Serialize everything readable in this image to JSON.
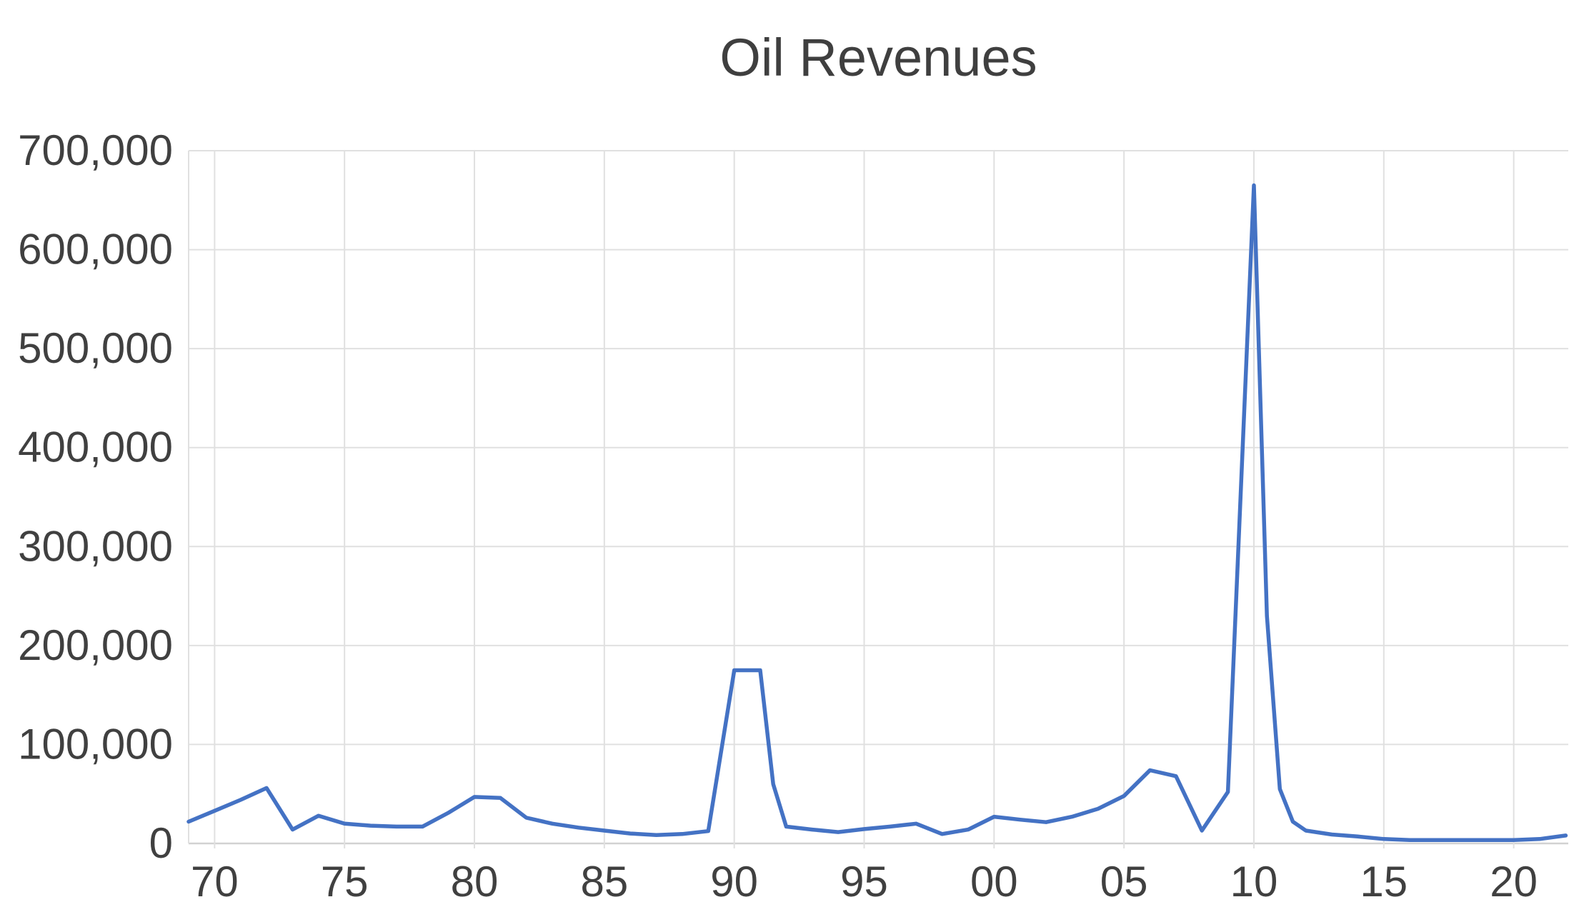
{
  "chart_data": {
    "type": "line",
    "title": "Oil Revenues",
    "xlabel": "",
    "ylabel": "",
    "legend_position": "none",
    "grid": true,
    "xlim": [
      1969,
      2022.1
    ],
    "ylim": [
      0,
      700000
    ],
    "line_color": "#4472C4",
    "grid_color": "#e0e0e0",
    "axis_line_color": "#d2d2d2",
    "text_color": "#404040",
    "y_ticks": [
      {
        "value": 0,
        "label": "0"
      },
      {
        "value": 100000,
        "label": "100,000"
      },
      {
        "value": 200000,
        "label": "200,000"
      },
      {
        "value": 300000,
        "label": "300,000"
      },
      {
        "value": 400000,
        "label": "400,000"
      },
      {
        "value": 500000,
        "label": "500,000"
      },
      {
        "value": 600000,
        "label": "600,000"
      },
      {
        "value": 700000,
        "label": "700,000"
      }
    ],
    "x_ticks": [
      {
        "year": 1970,
        "label": "70"
      },
      {
        "year": 1975,
        "label": "75"
      },
      {
        "year": 1980,
        "label": "80"
      },
      {
        "year": 1985,
        "label": "85"
      },
      {
        "year": 1990,
        "label": "90"
      },
      {
        "year": 1995,
        "label": "95"
      },
      {
        "year": 2000,
        "label": "00"
      },
      {
        "year": 2005,
        "label": "05"
      },
      {
        "year": 2010,
        "label": "10"
      },
      {
        "year": 2015,
        "label": "15"
      },
      {
        "year": 2020,
        "label": "20"
      }
    ],
    "series": [
      {
        "name": "Oil Revenues",
        "points": [
          [
            1969,
            22000
          ],
          [
            1970,
            33000
          ],
          [
            1971,
            44000
          ],
          [
            1972,
            56000
          ],
          [
            1973,
            14000
          ],
          [
            1974,
            28000
          ],
          [
            1975,
            20000
          ],
          [
            1976,
            18000
          ],
          [
            1977,
            17000
          ],
          [
            1978,
            17000
          ],
          [
            1979,
            31000
          ],
          [
            1980,
            47000
          ],
          [
            1981,
            46000
          ],
          [
            1982,
            26000
          ],
          [
            1983,
            20000
          ],
          [
            1984,
            16000
          ],
          [
            1985,
            13000
          ],
          [
            1986,
            10000
          ],
          [
            1987,
            8500
          ],
          [
            1988,
            9500
          ],
          [
            1989,
            12500
          ],
          [
            1990,
            175000
          ],
          [
            1991,
            175000
          ],
          [
            1991.5,
            60000
          ],
          [
            1992,
            17000
          ],
          [
            1993,
            14000
          ],
          [
            1994,
            11500
          ],
          [
            1995,
            14500
          ],
          [
            1996,
            17000
          ],
          [
            1997,
            20000
          ],
          [
            1998,
            9500
          ],
          [
            1999,
            14000
          ],
          [
            2000,
            27000
          ],
          [
            2001,
            24000
          ],
          [
            2002,
            21500
          ],
          [
            2003,
            27000
          ],
          [
            2004,
            35000
          ],
          [
            2005,
            48000
          ],
          [
            2006,
            74000
          ],
          [
            2007,
            68000
          ],
          [
            2008,
            13000
          ],
          [
            2009,
            52000
          ],
          [
            2010,
            665000
          ],
          [
            2010.5,
            230000
          ],
          [
            2011,
            55000
          ],
          [
            2011.5,
            22000
          ],
          [
            2012,
            13000
          ],
          [
            2013,
            9000
          ],
          [
            2014,
            7000
          ],
          [
            2015,
            4500
          ],
          [
            2016,
            3500
          ],
          [
            2017,
            3500
          ],
          [
            2018,
            3500
          ],
          [
            2019,
            3500
          ],
          [
            2020,
            3500
          ],
          [
            2021,
            4500
          ],
          [
            2022,
            8000
          ]
        ]
      }
    ]
  }
}
